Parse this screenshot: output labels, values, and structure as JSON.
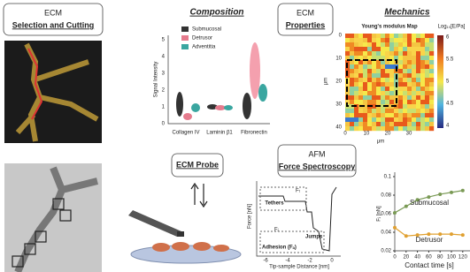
{
  "selection": {
    "line1": "ECM",
    "line2": "Selection and Cutting"
  },
  "composition": {
    "title": "Composition",
    "ylabel": "Signal Intensity",
    "yticks": [
      "0",
      "1",
      "2",
      "3",
      "4",
      "5"
    ],
    "legend": [
      "Submucosal",
      "Detrusor",
      "Adventitia"
    ],
    "categories": [
      "Collagen IV",
      "Laminin β1",
      "Fibronectin"
    ]
  },
  "properties": {
    "line1": "ECM",
    "line2": "Properties"
  },
  "mechanics": {
    "title": "Mechanics",
    "map_title": "Young's modulus Map",
    "colorbar_title": "Log₁₀[E/Pa]",
    "colorbar_ticks": [
      "6",
      "5.5",
      "5",
      "4.5",
      "4"
    ],
    "xticks": [
      "0",
      "10",
      "20",
      "30"
    ],
    "yticks": [
      "0",
      "10",
      "20",
      "30",
      "40"
    ],
    "xlabel": "μm",
    "ylabel": "μm"
  },
  "probe": {
    "title": "ECM Probe"
  },
  "spectroscopy": {
    "line1": "AFM",
    "line2": "Force Spectroscopy",
    "ylabel": "Force [nN]",
    "xlabel": "Tip-sample Distance [nm]",
    "xticks": [
      "-6",
      "-4",
      "-2",
      "0"
    ],
    "annotations": [
      "Tethers",
      "Fₜ",
      "Jumps",
      "Adhesion (Fₐ)",
      "Fⱼ"
    ]
  },
  "contact": {
    "ylabel": "Fⱼ [nN]",
    "xlabel": "Contact time [s]",
    "x": [
      0,
      20,
      40,
      60,
      80,
      100,
      120
    ],
    "xlim": [
      0,
      125
    ],
    "xticks": [
      0,
      20,
      40,
      60,
      80,
      100,
      120
    ],
    "ylim": [
      0.02,
      0.1
    ],
    "yticks": [
      0.02,
      0.04,
      0.06,
      0.08,
      0.1
    ],
    "series": [
      {
        "name": "Submucosal",
        "color": "#7a9a55",
        "values": [
          0.061,
          0.068,
          0.075,
          0.078,
          0.081,
          0.083,
          0.085
        ]
      },
      {
        "name": "Detrusor",
        "color": "#e0a030",
        "values": [
          0.045,
          0.036,
          0.037,
          0.038,
          0.038,
          0.038,
          0.037
        ]
      }
    ]
  }
}
